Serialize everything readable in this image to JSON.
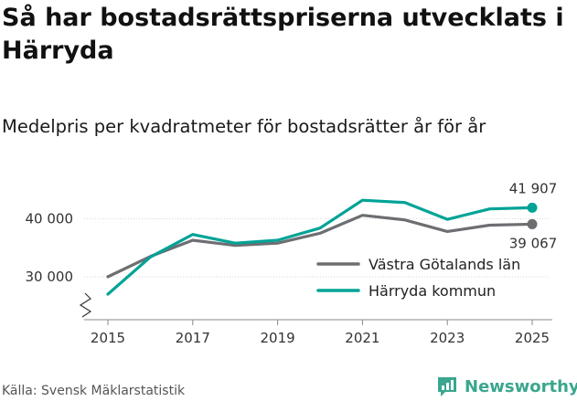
{
  "title": "Så har bostadsrättspriserna utvecklats i Härryda",
  "subtitle": "Medelpris per kvadratmeter för bostadsrätter år för år",
  "source": "Källa: Svensk Mäklarstatistik",
  "brand": {
    "name": "Newsworthy",
    "icon": "bar-chart-icon",
    "color": "#3aa68f"
  },
  "chart_data": {
    "type": "line",
    "x": [
      2015,
      2016,
      2017,
      2018,
      2019,
      2020,
      2021,
      2022,
      2023,
      2024,
      2025
    ],
    "series": [
      {
        "name": "Västra Götalands län",
        "color": "#6d6e71",
        "values": [
          30000,
          33500,
          36300,
          35400,
          35800,
          37500,
          40600,
          39800,
          37800,
          38900,
          39067
        ],
        "end_label": "39 067"
      },
      {
        "name": "Härryda kommun",
        "color": "#00a396",
        "values": [
          27000,
          33400,
          37300,
          35800,
          36300,
          38400,
          43200,
          42800,
          39900,
          41700,
          41907
        ],
        "end_label": "41 907"
      }
    ],
    "x_ticks": [
      2015,
      2017,
      2019,
      2021,
      2023,
      2025
    ],
    "x_tick_labels": [
      "2015",
      "2017",
      "2019",
      "2021",
      "2023",
      "2025"
    ],
    "y_ticks": [
      30000,
      40000
    ],
    "y_tick_labels": [
      "30 000",
      "40 000"
    ],
    "ylim": [
      25000,
      45000
    ],
    "axis_break": true,
    "legend_position": "right"
  }
}
